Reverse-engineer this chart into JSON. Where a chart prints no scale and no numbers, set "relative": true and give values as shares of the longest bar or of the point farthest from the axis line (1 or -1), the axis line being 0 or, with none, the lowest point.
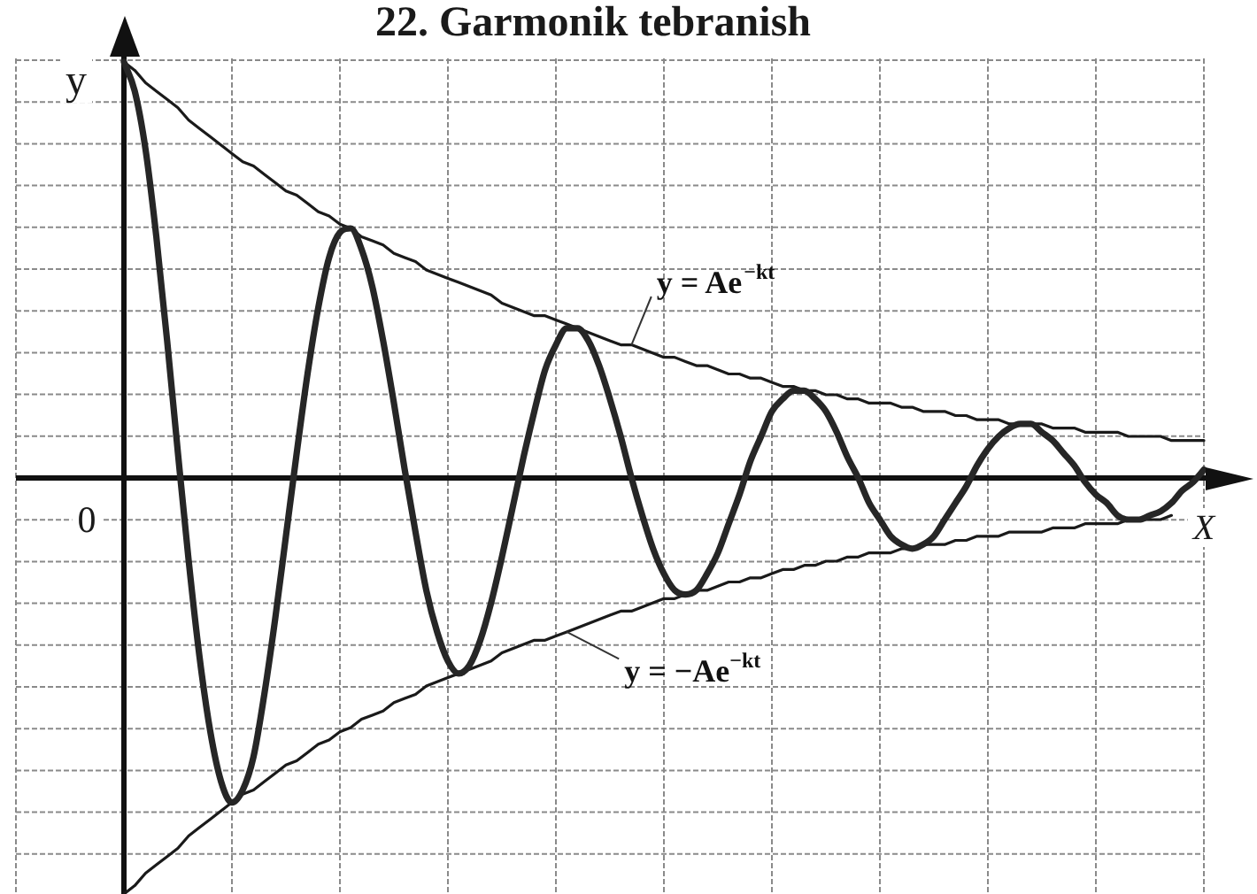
{
  "chart_data": {
    "type": "line",
    "title": "22. Garmonik tebranish",
    "xlabel": "X",
    "ylabel": "y",
    "relative": true,
    "grid": true,
    "marker": "none",
    "annotations": [
      "0"
    ],
    "categories": [
      null,
      null,
      null,
      null,
      null,
      null,
      null,
      null,
      null,
      null,
      null,
      null,
      null,
      null,
      null,
      null,
      null,
      null,
      null,
      null,
      null,
      null,
      null,
      null,
      null,
      null,
      null,
      null,
      null,
      null,
      null,
      null,
      null,
      null,
      null,
      null,
      null,
      null,
      null,
      null,
      null,
      null,
      null,
      null,
      null,
      null,
      null,
      null,
      null,
      null,
      null,
      null,
      null,
      null,
      null,
      null,
      null,
      null,
      null,
      null,
      null,
      null,
      null,
      null,
      null,
      null,
      null,
      null,
      null,
      null,
      null,
      null,
      null,
      null,
      null,
      null,
      null,
      null,
      null,
      null,
      null,
      null,
      null,
      null,
      null,
      null,
      null,
      null,
      null,
      null,
      null,
      null,
      null,
      null,
      null,
      null,
      null,
      null,
      null,
      null,
      null
    ],
    "series": [
      {
        "color": "#262626",
        "values": [
          1.0,
          0.93,
          0.79,
          0.58,
          0.33,
          0.06,
          -0.2,
          -0.43,
          -0.61,
          -0.73,
          -0.78,
          -0.75,
          -0.67,
          -0.52,
          -0.34,
          -0.14,
          0.06,
          0.25,
          0.41,
          0.53,
          0.59,
          0.6,
          0.55,
          0.46,
          0.33,
          0.18,
          0.02,
          -0.13,
          -0.27,
          -0.37,
          -0.44,
          -0.47,
          -0.45,
          -0.39,
          -0.3,
          -0.19,
          -0.07,
          0.05,
          0.16,
          0.26,
          0.32,
          0.36,
          0.36,
          0.33,
          0.27,
          0.19,
          0.1,
          0.0,
          -0.09,
          -0.17,
          -0.23,
          -0.27,
          -0.28,
          -0.27,
          -0.23,
          -0.18,
          -0.11,
          -0.04,
          0.04,
          0.1,
          0.16,
          0.19,
          0.21,
          0.21,
          0.19,
          0.16,
          0.11,
          0.05,
          0.0,
          -0.06,
          -0.1,
          -0.14,
          -0.16,
          -0.17,
          -0.16,
          -0.14,
          -0.1,
          -0.06,
          -0.02,
          0.03,
          0.07,
          0.1,
          0.12,
          0.13,
          0.13,
          0.11,
          0.09,
          0.06,
          0.03,
          -0.01,
          -0.04,
          -0.06,
          -0.09,
          -0.1,
          -0.1,
          -0.09,
          -0.08,
          -0.06,
          -0.03,
          -0.01,
          0.02
        ]
      },
      {
        "name": "y = Ae$^{−kt}$",
        "color": "#1a1a1a",
        "values": [
          1.0,
          0.98,
          0.95,
          0.93,
          0.91,
          0.89,
          0.86,
          0.84,
          0.82,
          0.8,
          0.78,
          0.76,
          0.75,
          0.73,
          0.71,
          0.69,
          0.68,
          0.66,
          0.64,
          0.63,
          0.61,
          0.6,
          0.58,
          0.57,
          0.56,
          0.54,
          0.53,
          0.52,
          0.5,
          0.49,
          0.48,
          0.47,
          0.46,
          0.45,
          0.44,
          0.42,
          0.41,
          0.4,
          0.39,
          0.39,
          0.38,
          0.37,
          0.36,
          0.35,
          0.34,
          0.33,
          0.32,
          0.32,
          0.31,
          0.3,
          0.29,
          0.29,
          0.28,
          0.27,
          0.27,
          0.26,
          0.25,
          0.25,
          0.24,
          0.24,
          0.23,
          0.22,
          0.22,
          0.21,
          0.21,
          0.2,
          0.2,
          0.19,
          0.19,
          0.18,
          0.18,
          0.18,
          0.17,
          0.17,
          0.16,
          0.16,
          0.16,
          0.15,
          0.15,
          0.14,
          0.14,
          0.14,
          0.13,
          0.13,
          0.13,
          0.13,
          0.12,
          0.12,
          0.12,
          0.11,
          0.11,
          0.11,
          0.11,
          0.1,
          0.1,
          0.1,
          0.1,
          0.09,
          0.09,
          0.09,
          0.09
        ]
      },
      {
        "name": "y = −Ae$^{−kt}$",
        "color": "#1a1a1a",
        "values": [
          -1.0,
          -0.98,
          -0.95,
          -0.93,
          -0.91,
          -0.89,
          -0.86,
          -0.84,
          -0.82,
          -0.8,
          -0.78,
          -0.76,
          -0.75,
          -0.73,
          -0.71,
          -0.69,
          -0.68,
          -0.66,
          -0.64,
          -0.63,
          -0.61,
          -0.6,
          -0.58,
          -0.57,
          -0.56,
          -0.54,
          -0.53,
          -0.52,
          -0.5,
          -0.49,
          -0.48,
          -0.47,
          -0.46,
          -0.45,
          -0.44,
          -0.42,
          -0.41,
          -0.4,
          -0.39,
          -0.39,
          -0.38,
          -0.37,
          -0.36,
          -0.35,
          -0.34,
          -0.33,
          -0.32,
          -0.32,
          -0.31,
          -0.3,
          -0.29,
          -0.29,
          -0.28,
          -0.27,
          -0.27,
          -0.26,
          -0.25,
          -0.25,
          -0.24,
          -0.24,
          -0.23,
          -0.22,
          -0.22,
          -0.21,
          -0.21,
          -0.2,
          -0.2,
          -0.19,
          -0.19,
          -0.18,
          -0.18,
          -0.18,
          -0.17,
          -0.17,
          -0.16,
          -0.16,
          -0.16,
          -0.15,
          -0.15,
          -0.14,
          -0.14,
          -0.14,
          -0.13,
          -0.13,
          -0.13,
          -0.13,
          -0.12,
          -0.12,
          -0.12,
          -0.11,
          -0.11,
          -0.11,
          -0.11,
          -0.1,
          -0.1,
          -0.1,
          -0.1,
          -0.09,
          null,
          null,
          null
        ]
      }
    ]
  }
}
